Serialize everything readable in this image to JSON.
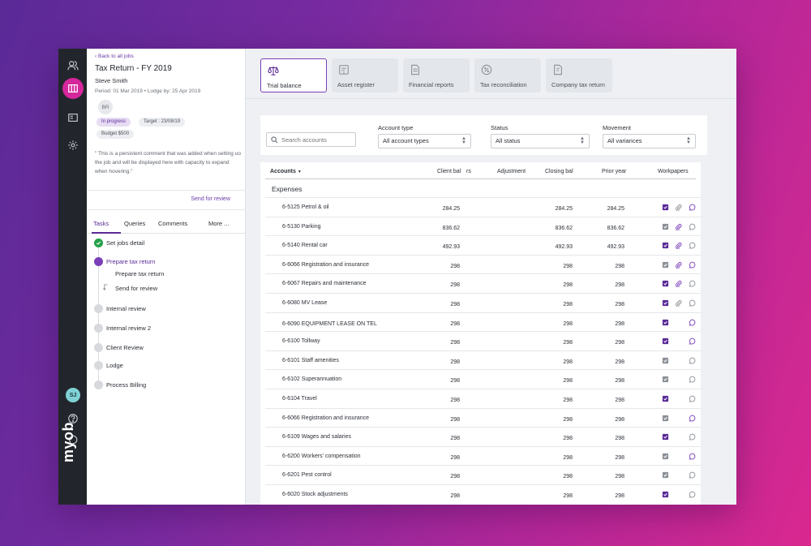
{
  "panel": {
    "back": "Back to all jobs",
    "title": "Tax Return - FY 2019",
    "client": "Steve Smith",
    "period": "Period: 01 Mar 2019  •  Lodge by: 25 Apr 2019",
    "initials": "BR",
    "status": "In progress",
    "target": "Target : 23/08/19",
    "budget": "Budget $500",
    "comment": "\" This is a persistent comment that was added when setting uo the job and will be displayed here with capacity to expand when hovering.\"",
    "send_review": "Send for review",
    "tabs": [
      "Tasks",
      "Queries",
      "Comments",
      "More ..."
    ],
    "steps": [
      {
        "label": "Set jobs detail",
        "state": "done"
      },
      {
        "label": "Prepare tax return",
        "state": "current"
      },
      {
        "label": "Prepare tax return",
        "state": "sub"
      },
      {
        "label": "Send for review",
        "state": "sub2"
      },
      {
        "label": "Internal review",
        "state": "todo"
      },
      {
        "label": "Internal review 2",
        "state": "todo"
      },
      {
        "label": "Client Review",
        "state": "todo"
      },
      {
        "label": "Lodge",
        "state": "todo"
      },
      {
        "label": "Process Billing",
        "state": "todo"
      }
    ]
  },
  "rail": {
    "avatar": "SJ",
    "logo": "myob"
  },
  "report_tabs": [
    {
      "label": "Trial balance",
      "icon": "scales-icon"
    },
    {
      "label": "Asset register",
      "icon": "asset-icon"
    },
    {
      "label": "Financial reports",
      "icon": "document-icon"
    },
    {
      "label": "Tax reconciliation",
      "icon": "percent-icon"
    },
    {
      "label": "Company tax return",
      "icon": "tax-return-icon"
    }
  ],
  "filters": {
    "search_placeholder": "Search accounts",
    "account_type_label": "Account type",
    "account_type_value": "All account types",
    "status_label": "Status",
    "status_value": "All status",
    "movement_label": "Movement",
    "movement_value": "All variances"
  },
  "table": {
    "headers": {
      "accounts": "Accounts",
      "client_bal": "Client bal",
      "overlap": "rs",
      "adjustment": "Adjustment",
      "closing_bal": "Closing bal",
      "prior_year": "Prior year",
      "workpapers": "Workpapers"
    },
    "group": "Expenses",
    "rows": [
      {
        "name": "6-5125 Petrol & oil",
        "client": "284.25",
        "closing": "284.25",
        "prior": "284.25",
        "wp": [
          "check",
          "clip",
          "chat"
        ]
      },
      {
        "name": "6-5130 Parking",
        "client": "836.62",
        "closing": "836.62",
        "prior": "836.62",
        "wp": [
          "grey",
          "clip-p",
          "chat-o"
        ]
      },
      {
        "name": "6-5140 Rental car",
        "client": "492.93",
        "closing": "492.93",
        "prior": "492.93",
        "wp": [
          "check",
          "clip-p",
          "chat-o"
        ]
      },
      {
        "name": "6-6066 Registration and insurance",
        "client": "298",
        "closing": "298",
        "prior": "298",
        "wp": [
          "grey",
          "clip-p",
          "chat"
        ]
      },
      {
        "name": "6-6067 Repairs and maintenance",
        "client": "298",
        "closing": "298",
        "prior": "298",
        "wp": [
          "check",
          "clip-p",
          "chat-o"
        ]
      },
      {
        "name": "6-6080 MV Lease",
        "client": "298",
        "closing": "298",
        "prior": "298",
        "wp": [
          "check",
          "clip",
          "chat-o"
        ]
      },
      {
        "name": "6-6090 EQUIPMENT LEASE ON TEL",
        "client": "298",
        "closing": "298",
        "prior": "298",
        "wp": [
          "check",
          "",
          "chat"
        ]
      },
      {
        "name": "6-6100 Tollway",
        "client": "298",
        "closing": "298",
        "prior": "298",
        "wp": [
          "check",
          "",
          "chat"
        ]
      },
      {
        "name": "6-6101 Staff amenities",
        "client": "298",
        "closing": "298",
        "prior": "298",
        "wp": [
          "grey",
          "",
          "chat-o"
        ]
      },
      {
        "name": "6-6102 Superannuation",
        "client": "298",
        "closing": "298",
        "prior": "298",
        "wp": [
          "grey",
          "",
          "chat-o"
        ]
      },
      {
        "name": "6-6104 Travel",
        "client": "298",
        "closing": "298",
        "prior": "298",
        "wp": [
          "check",
          "",
          "chat-o"
        ]
      },
      {
        "name": "6-6066 Registration and insurance",
        "client": "298",
        "closing": "298",
        "prior": "298",
        "wp": [
          "grey",
          "",
          "chat"
        ]
      },
      {
        "name": "6-6109 Wages and salaries",
        "client": "298",
        "closing": "298",
        "prior": "298",
        "wp": [
          "check",
          "",
          "chat-o"
        ]
      },
      {
        "name": "6-6200 Workers' compensation",
        "client": "298",
        "closing": "298",
        "prior": "298",
        "wp": [
          "grey",
          "",
          "chat"
        ]
      },
      {
        "name": "6-6201 Pest control",
        "client": "298",
        "closing": "298",
        "prior": "298",
        "wp": [
          "grey",
          "",
          "chat-o"
        ]
      },
      {
        "name": "6-6020 Stock adjustments",
        "client": "298",
        "closing": "298",
        "prior": "298",
        "wp": [
          "check",
          "",
          "chat-o"
        ]
      }
    ]
  },
  "colors": {
    "accent": "#5a2a97",
    "brand": "#d5269b",
    "rail": "#22262c"
  }
}
